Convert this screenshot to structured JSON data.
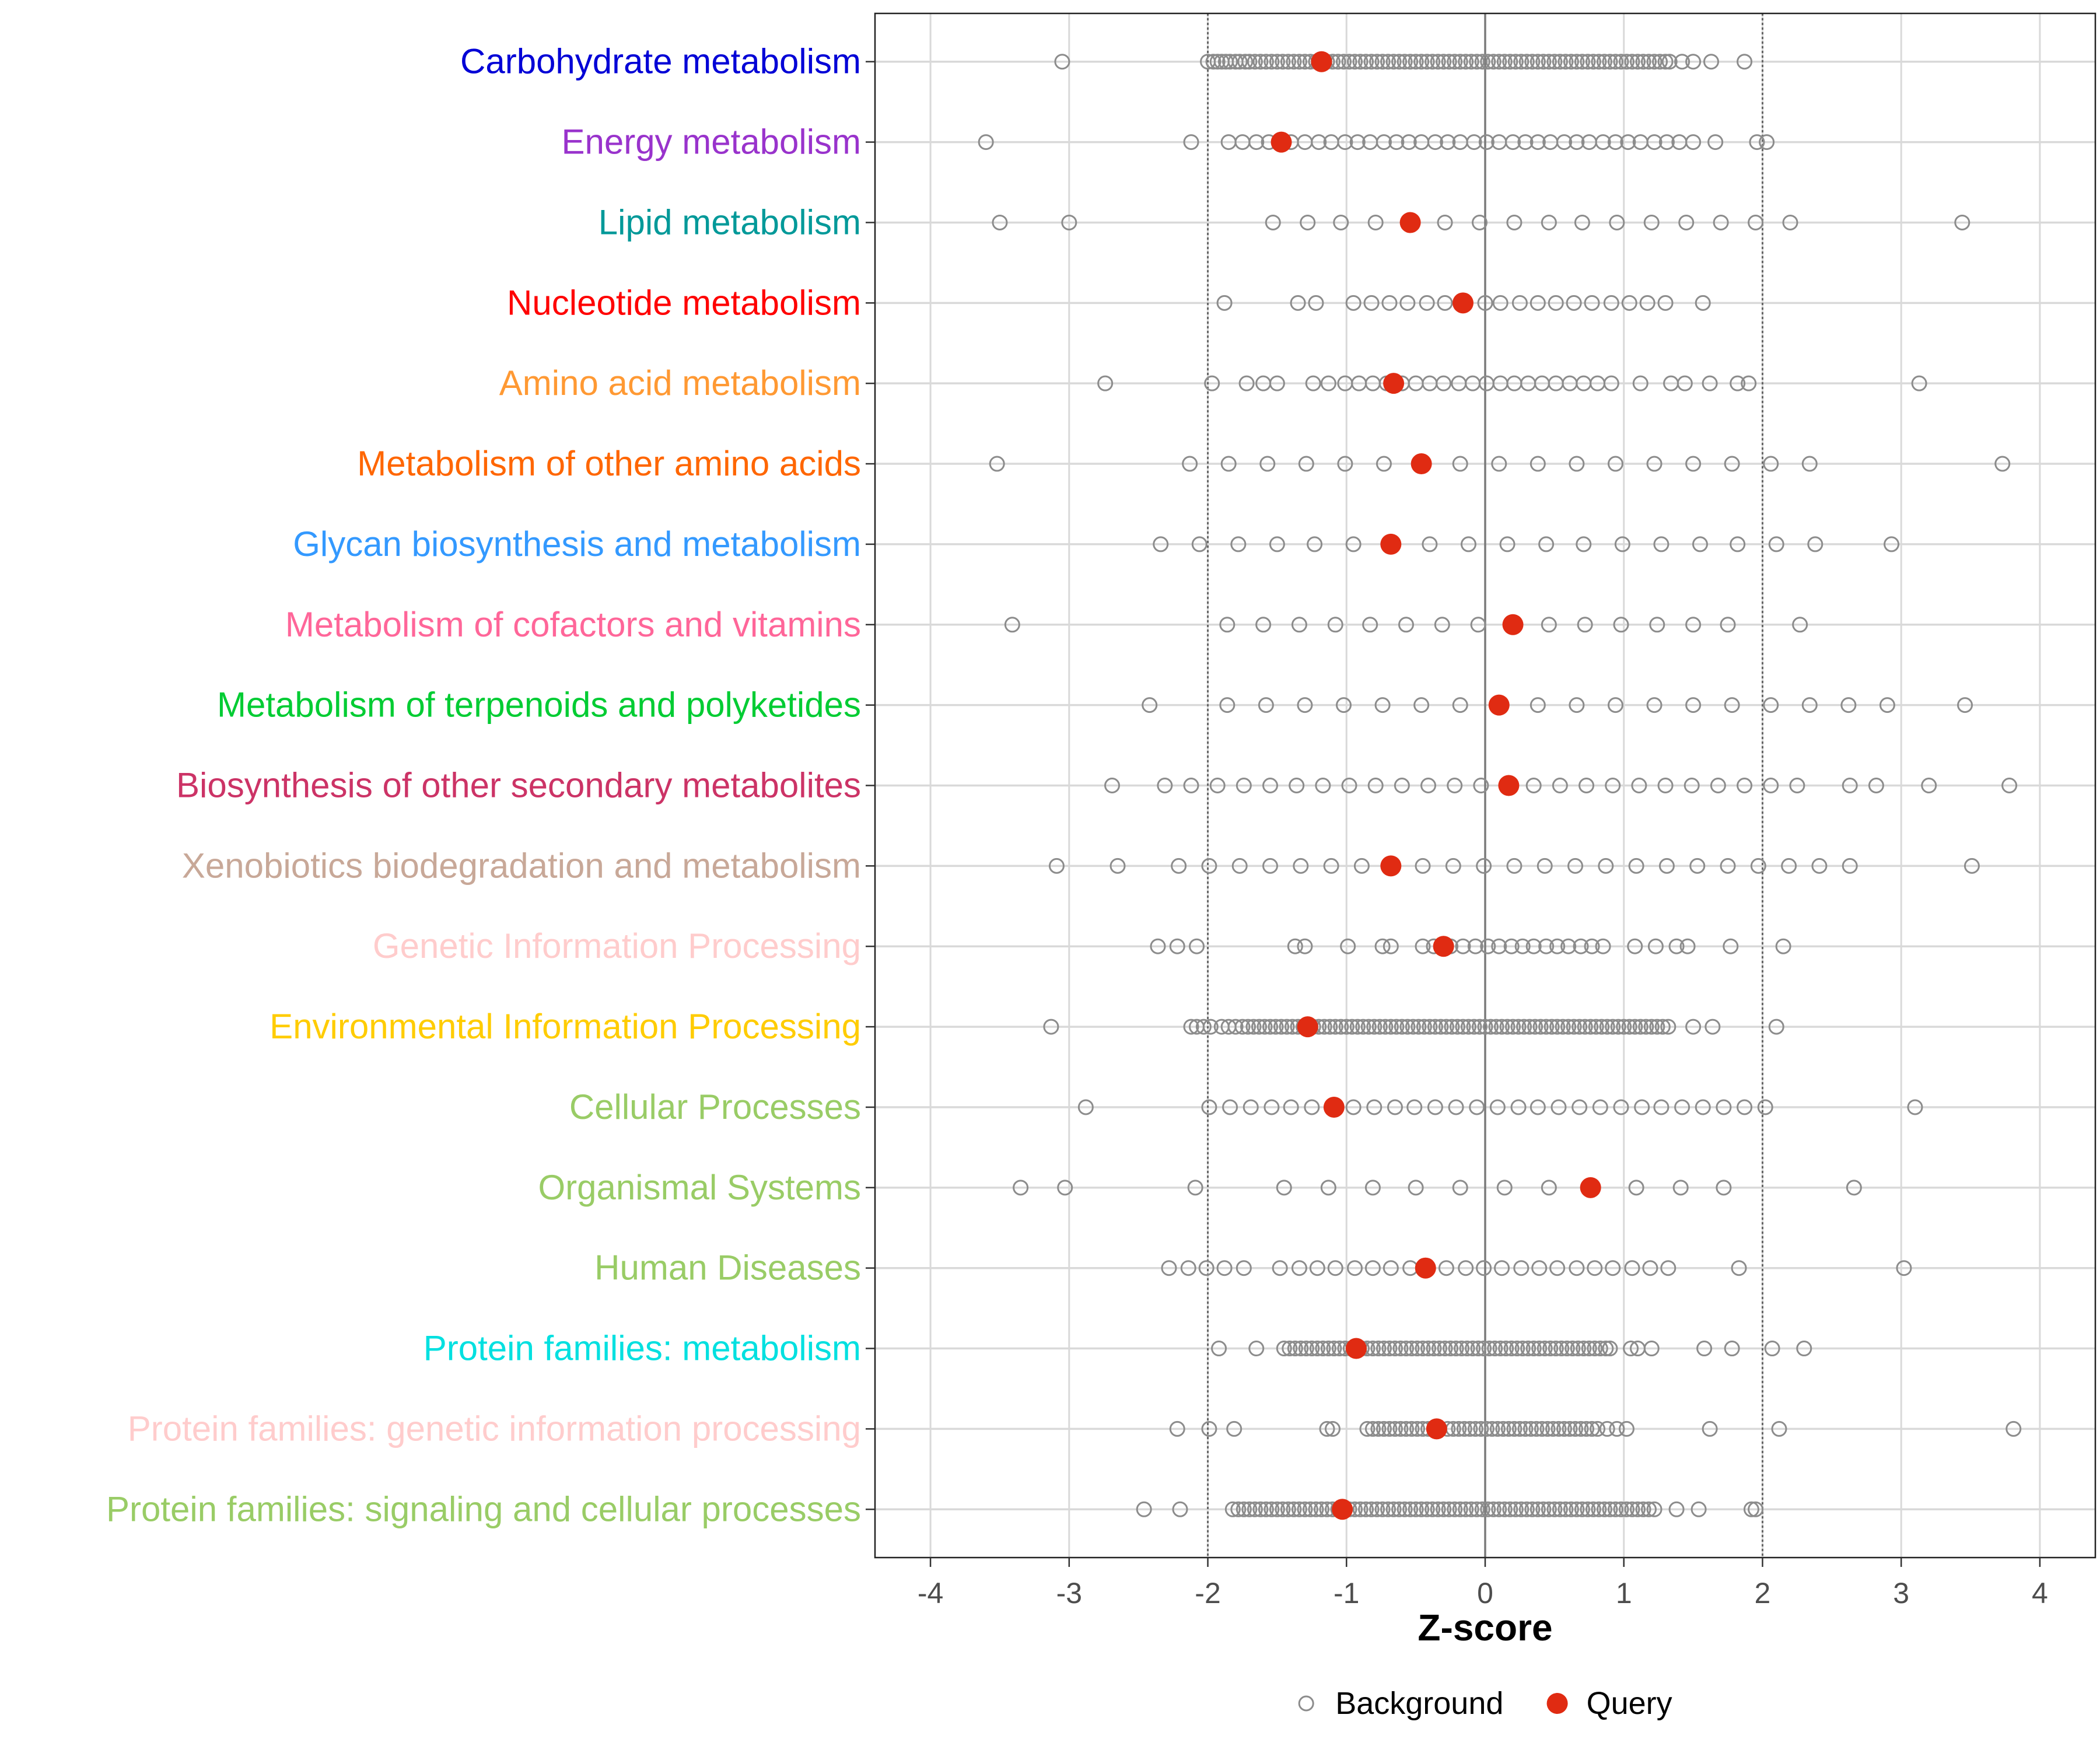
{
  "chart_data": {
    "type": "scatter",
    "title": "",
    "xlabel": "Z-score",
    "ylabel": "",
    "xlim": [
      -4.4,
      4.4
    ],
    "xticks": [
      -4,
      -3,
      -2,
      -1,
      0,
      1,
      2,
      3,
      4
    ],
    "reference_lines": [
      -2,
      0,
      2
    ],
    "grid": true,
    "legend": {
      "placement": "bottom",
      "entries": [
        {
          "name": "Background",
          "style": "hollow-circle",
          "color": "#8c8c8c"
        },
        {
          "name": "Query",
          "style": "filled-circle",
          "color": "#e02b12"
        }
      ]
    },
    "categories": [
      {
        "label": "Carbohydrate metabolism",
        "color": "#0000d6",
        "query": -1.18,
        "background": [
          -3.05,
          -2.0,
          -1.96,
          -1.93,
          -1.9,
          -1.87,
          -1.84,
          -1.8,
          -1.77,
          -1.73,
          -1.7,
          -1.66,
          -1.62,
          -1.58,
          -1.54,
          -1.5,
          -1.46,
          -1.42,
          -1.38,
          -1.34,
          -1.3,
          -1.26,
          -1.22,
          -1.18,
          -1.14,
          -1.1,
          -1.06,
          -1.02,
          -0.98,
          -0.94,
          -0.9,
          -0.86,
          -0.82,
          -0.78,
          -0.74,
          -0.7,
          -0.66,
          -0.62,
          -0.58,
          -0.54,
          -0.5,
          -0.46,
          -0.42,
          -0.38,
          -0.34,
          -0.3,
          -0.26,
          -0.22,
          -0.18,
          -0.14,
          -0.1,
          -0.06,
          -0.02,
          0.02,
          0.06,
          0.1,
          0.14,
          0.18,
          0.22,
          0.26,
          0.3,
          0.34,
          0.38,
          0.42,
          0.46,
          0.5,
          0.54,
          0.58,
          0.62,
          0.66,
          0.7,
          0.74,
          0.78,
          0.82,
          0.86,
          0.9,
          0.94,
          0.98,
          1.02,
          1.06,
          1.1,
          1.14,
          1.18,
          1.22,
          1.26,
          1.3,
          1.33,
          1.42,
          1.5,
          1.63,
          1.87
        ]
      },
      {
        "label": "Energy metabolism",
        "color": "#9933cc",
        "query": -1.47,
        "background": [
          -3.6,
          -2.12,
          -1.85,
          -1.75,
          -1.65,
          -1.56,
          -1.4,
          -1.3,
          -1.2,
          -1.11,
          -1.01,
          -0.92,
          -0.83,
          -0.73,
          -0.64,
          -0.55,
          -0.46,
          -0.36,
          -0.27,
          -0.18,
          -0.08,
          0.01,
          0.1,
          0.2,
          0.29,
          0.38,
          0.47,
          0.57,
          0.66,
          0.75,
          0.85,
          0.94,
          1.03,
          1.12,
          1.22,
          1.31,
          1.4,
          1.5,
          1.66,
          1.96,
          2.03
        ]
      },
      {
        "label": "Lipid metabolism",
        "color": "#009999",
        "query": -0.54,
        "background": [
          -3.5,
          -3.0,
          -1.53,
          -1.28,
          -1.04,
          -0.79,
          -0.29,
          -0.04,
          0.21,
          0.46,
          0.7,
          0.95,
          1.2,
          1.45,
          1.7,
          1.95,
          2.2,
          3.44
        ]
      },
      {
        "label": "Nucleotide metabolism",
        "color": "#ff0000",
        "query": -0.16,
        "background": [
          -1.88,
          -1.35,
          -1.22,
          -0.95,
          -0.82,
          -0.69,
          -0.56,
          -0.42,
          -0.29,
          0.0,
          0.11,
          0.25,
          0.38,
          0.51,
          0.64,
          0.77,
          0.91,
          1.04,
          1.17,
          1.3,
          1.57
        ]
      },
      {
        "label": "Amino acid metabolism",
        "color": "#ff9933",
        "query": -0.66,
        "background": [
          -2.74,
          -1.97,
          -1.72,
          -1.6,
          -1.5,
          -1.24,
          -1.13,
          -1.01,
          -0.91,
          -0.81,
          -0.71,
          -0.6,
          -0.5,
          -0.4,
          -0.3,
          -0.19,
          -0.09,
          0.01,
          0.11,
          0.21,
          0.31,
          0.41,
          0.51,
          0.61,
          0.71,
          0.81,
          0.91,
          1.12,
          1.34,
          1.44,
          1.62,
          1.82,
          1.9,
          3.13
        ]
      },
      {
        "label": "Metabolism of other amino acids",
        "color": "#ff6600",
        "query": -0.46,
        "background": [
          -3.52,
          -2.13,
          -1.85,
          -1.57,
          -1.29,
          -1.01,
          -0.73,
          -0.18,
          0.1,
          0.38,
          0.66,
          0.94,
          1.22,
          1.5,
          1.78,
          2.06,
          2.34,
          3.73
        ]
      },
      {
        "label": "Glycan biosynthesis and metabolism",
        "color": "#3399ff",
        "query": -0.68,
        "background": [
          -2.34,
          -2.06,
          -1.78,
          -1.5,
          -1.23,
          -0.95,
          -0.4,
          -0.12,
          0.16,
          0.44,
          0.71,
          0.99,
          1.27,
          1.55,
          1.82,
          2.1,
          2.38,
          2.93
        ]
      },
      {
        "label": "Metabolism of cofactors and vitamins",
        "color": "#ff6699",
        "query": 0.2,
        "background": [
          -3.41,
          -1.86,
          -1.6,
          -1.34,
          -1.08,
          -0.83,
          -0.57,
          -0.31,
          -0.05,
          0.46,
          0.72,
          0.98,
          1.24,
          1.5,
          1.75,
          2.27
        ]
      },
      {
        "label": "Metabolism of terpenoids and polyketides",
        "color": "#00cc33",
        "query": 0.1,
        "background": [
          -2.42,
          -1.86,
          -1.58,
          -1.3,
          -1.02,
          -0.74,
          -0.46,
          -0.18,
          0.38,
          0.66,
          0.94,
          1.22,
          1.5,
          1.78,
          2.06,
          2.34,
          2.62,
          2.9,
          3.46
        ]
      },
      {
        "label": "Biosynthesis of other secondary metabolites",
        "color": "#cc3366",
        "query": 0.17,
        "background": [
          -2.69,
          -2.31,
          -2.12,
          -1.93,
          -1.74,
          -1.55,
          -1.36,
          -1.17,
          -0.98,
          -0.79,
          -0.6,
          -0.41,
          -0.22,
          -0.03,
          0.35,
          0.54,
          0.73,
          0.92,
          1.11,
          1.3,
          1.49,
          1.68,
          1.87,
          2.06,
          2.25,
          2.63,
          2.82,
          3.2,
          3.78
        ]
      },
      {
        "label": "Xenobiotics biodegradation and metabolism",
        "color": "#c8a898",
        "query": -0.68,
        "background": [
          -3.09,
          -2.65,
          -2.21,
          -1.99,
          -1.77,
          -1.55,
          -1.33,
          -1.11,
          -0.89,
          -0.45,
          -0.23,
          -0.01,
          0.21,
          0.43,
          0.65,
          0.87,
          1.09,
          1.31,
          1.53,
          1.75,
          1.97,
          2.19,
          2.41,
          2.63,
          3.51
        ]
      },
      {
        "label": "Genetic Information Processing",
        "color": "#ffcccc",
        "query": -0.3,
        "background": [
          -2.36,
          -2.22,
          -2.08,
          -1.37,
          -1.3,
          -0.99,
          -0.74,
          -0.68,
          -0.45,
          -0.37,
          -0.25,
          -0.16,
          -0.07,
          0.02,
          0.1,
          0.19,
          0.27,
          0.35,
          0.44,
          0.52,
          0.6,
          0.69,
          0.77,
          0.85,
          1.08,
          1.23,
          1.38,
          1.46,
          1.77,
          2.15
        ]
      },
      {
        "label": "Environmental Information Processing",
        "color": "#ffcc00",
        "query": -1.28,
        "background": [
          -3.13,
          -2.12,
          -2.08,
          -2.03,
          -1.98,
          -1.9,
          -1.85,
          -1.8,
          -1.75,
          -1.71,
          -1.67,
          -1.63,
          -1.59,
          -1.55,
          -1.51,
          -1.47,
          -1.43,
          -1.39,
          -1.35,
          -1.31,
          -1.24,
          -1.2,
          -1.16,
          -1.12,
          -1.08,
          -1.04,
          -1.0,
          -0.96,
          -0.92,
          -0.88,
          -0.84,
          -0.8,
          -0.76,
          -0.72,
          -0.68,
          -0.64,
          -0.6,
          -0.56,
          -0.52,
          -0.48,
          -0.44,
          -0.4,
          -0.36,
          -0.32,
          -0.28,
          -0.24,
          -0.2,
          -0.16,
          -0.12,
          -0.08,
          -0.04,
          0.0,
          0.04,
          0.08,
          0.12,
          0.16,
          0.2,
          0.24,
          0.28,
          0.32,
          0.36,
          0.4,
          0.44,
          0.48,
          0.52,
          0.56,
          0.6,
          0.64,
          0.68,
          0.72,
          0.76,
          0.8,
          0.84,
          0.88,
          0.92,
          0.96,
          1.0,
          1.04,
          1.08,
          1.12,
          1.16,
          1.2,
          1.24,
          1.28,
          1.32,
          1.5,
          1.64,
          2.1
        ]
      },
      {
        "label": "Cellular Processes",
        "color": "#99cc66",
        "query": -1.09,
        "background": [
          -2.88,
          -1.99,
          -1.84,
          -1.69,
          -1.54,
          -1.4,
          -1.25,
          -0.95,
          -0.8,
          -0.65,
          -0.51,
          -0.36,
          -0.21,
          -0.06,
          0.09,
          0.24,
          0.38,
          0.53,
          0.68,
          0.83,
          0.98,
          1.13,
          1.27,
          1.42,
          1.57,
          1.72,
          1.87,
          2.02,
          3.1
        ]
      },
      {
        "label": "Organismal Systems",
        "color": "#99cc66",
        "query": 0.76,
        "background": [
          -3.35,
          -3.03,
          -2.09,
          -1.45,
          -1.13,
          -0.81,
          -0.5,
          -0.18,
          0.14,
          0.46,
          1.09,
          1.41,
          1.72,
          2.66
        ]
      },
      {
        "label": "Human Diseases",
        "color": "#99cc66",
        "query": -0.43,
        "background": [
          -2.28,
          -2.14,
          -2.01,
          -1.88,
          -1.74,
          -1.48,
          -1.34,
          -1.21,
          -1.08,
          -0.94,
          -0.81,
          -0.68,
          -0.54,
          -0.28,
          -0.14,
          -0.01,
          0.12,
          0.26,
          0.39,
          0.52,
          0.66,
          0.79,
          0.92,
          1.06,
          1.19,
          1.32,
          1.83,
          3.02
        ]
      },
      {
        "label": "Protein families: metabolism",
        "color": "#00e0e0",
        "query": -0.93,
        "background": [
          -1.92,
          -1.65,
          -1.45,
          -1.41,
          -1.37,
          -1.33,
          -1.29,
          -1.25,
          -1.21,
          -1.17,
          -1.13,
          -1.09,
          -1.05,
          -1.01,
          -0.97,
          -0.89,
          -0.85,
          -0.81,
          -0.77,
          -0.73,
          -0.69,
          -0.65,
          -0.61,
          -0.57,
          -0.53,
          -0.49,
          -0.45,
          -0.41,
          -0.37,
          -0.33,
          -0.29,
          -0.25,
          -0.21,
          -0.17,
          -0.13,
          -0.09,
          -0.05,
          -0.01,
          0.03,
          0.07,
          0.11,
          0.15,
          0.19,
          0.23,
          0.27,
          0.31,
          0.35,
          0.39,
          0.43,
          0.47,
          0.51,
          0.55,
          0.59,
          0.63,
          0.67,
          0.71,
          0.75,
          0.79,
          0.83,
          0.87,
          0.9,
          1.05,
          1.1,
          1.2,
          1.58,
          1.78,
          2.07,
          2.3
        ]
      },
      {
        "label": "Protein families: genetic information processing",
        "color": "#ffcccc",
        "query": -0.35,
        "background": [
          -2.22,
          -1.99,
          -1.81,
          -1.14,
          -1.1,
          -0.85,
          -0.81,
          -0.77,
          -0.73,
          -0.69,
          -0.65,
          -0.61,
          -0.57,
          -0.53,
          -0.49,
          -0.45,
          -0.41,
          -0.27,
          -0.23,
          -0.19,
          -0.15,
          -0.11,
          -0.07,
          -0.03,
          0.01,
          0.05,
          0.09,
          0.13,
          0.17,
          0.21,
          0.25,
          0.29,
          0.33,
          0.37,
          0.41,
          0.45,
          0.49,
          0.53,
          0.57,
          0.61,
          0.65,
          0.69,
          0.73,
          0.77,
          0.81,
          0.88,
          0.95,
          1.02,
          1.62,
          2.12,
          3.81
        ]
      },
      {
        "label": "Protein families: signaling and cellular processes",
        "color": "#99cc66",
        "query": -1.03,
        "background": [
          -2.46,
          -2.2,
          -1.82,
          -1.78,
          -1.74,
          -1.7,
          -1.66,
          -1.62,
          -1.58,
          -1.54,
          -1.5,
          -1.46,
          -1.42,
          -1.38,
          -1.34,
          -1.3,
          -1.26,
          -1.22,
          -1.18,
          -1.14,
          -1.1,
          -1.06,
          -0.98,
          -0.94,
          -0.9,
          -0.86,
          -0.82,
          -0.78,
          -0.74,
          -0.7,
          -0.66,
          -0.62,
          -0.58,
          -0.54,
          -0.5,
          -0.46,
          -0.42,
          -0.38,
          -0.34,
          -0.3,
          -0.26,
          -0.22,
          -0.18,
          -0.14,
          -0.1,
          -0.06,
          -0.02,
          0.02,
          0.06,
          0.1,
          0.14,
          0.18,
          0.22,
          0.26,
          0.3,
          0.34,
          0.38,
          0.42,
          0.46,
          0.5,
          0.54,
          0.58,
          0.62,
          0.66,
          0.7,
          0.74,
          0.78,
          0.82,
          0.86,
          0.9,
          0.94,
          0.98,
          1.02,
          1.06,
          1.1,
          1.14,
          1.18,
          1.22,
          1.38,
          1.54,
          1.92,
          1.95
        ]
      }
    ]
  }
}
